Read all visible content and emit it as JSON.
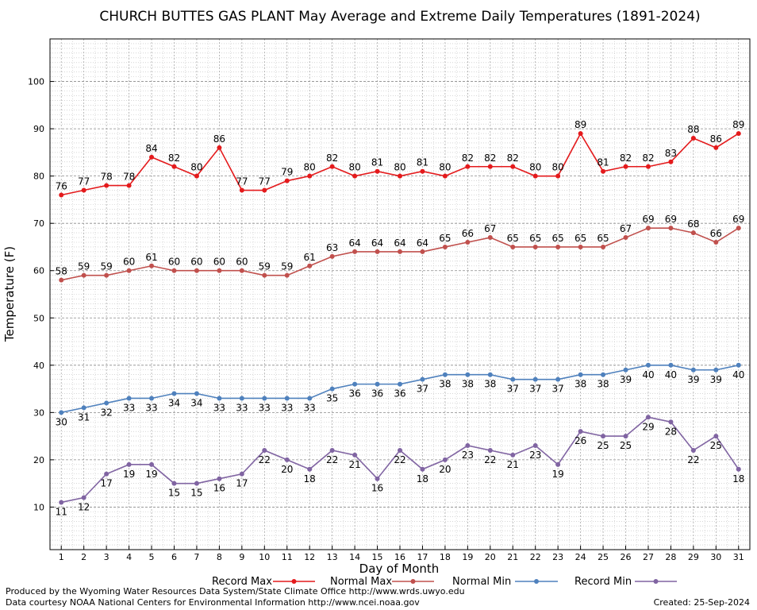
{
  "chart_data": {
    "type": "line",
    "title": "CHURCH BUTTES GAS PLANT May Average and Extreme Daily Temperatures (1891-2024)",
    "xlabel": "Day of Month",
    "ylabel": "Temperature (F)",
    "x": [
      1,
      2,
      3,
      4,
      5,
      6,
      7,
      8,
      9,
      10,
      11,
      12,
      13,
      14,
      15,
      16,
      17,
      18,
      19,
      20,
      21,
      22,
      23,
      24,
      25,
      26,
      27,
      28,
      29,
      30,
      31
    ],
    "xlim": [
      0.5,
      31.5
    ],
    "ylim": [
      1,
      109
    ],
    "yticks": [
      10,
      20,
      30,
      40,
      50,
      60,
      70,
      80,
      90,
      100
    ],
    "grid": true,
    "legend_position": "bottom",
    "series": [
      {
        "name": "Record Max",
        "color": "#e41a1c",
        "label_position": "above",
        "values": [
          76,
          77,
          78,
          78,
          84,
          82,
          80,
          86,
          77,
          77,
          79,
          80,
          82,
          80,
          81,
          80,
          81,
          80,
          82,
          82,
          82,
          80,
          80,
          89,
          81,
          82,
          82,
          83,
          88,
          86,
          89
        ]
      },
      {
        "name": "Normal Max",
        "color": "#c0504d",
        "label_position": "above",
        "values": [
          58,
          59,
          59,
          60,
          61,
          60,
          60,
          60,
          60,
          59,
          59,
          61,
          63,
          64,
          64,
          64,
          64,
          65,
          66,
          67,
          65,
          65,
          65,
          65,
          65,
          67,
          69,
          69,
          68,
          66,
          69
        ]
      },
      {
        "name": "Normal Min",
        "color": "#4f81bd",
        "label_position": "below",
        "values": [
          30,
          31,
          32,
          33,
          33,
          34,
          34,
          33,
          33,
          33,
          33,
          33,
          35,
          36,
          36,
          36,
          37,
          38,
          38,
          38,
          37,
          37,
          37,
          38,
          38,
          39,
          40,
          40,
          39,
          39,
          40
        ]
      },
      {
        "name": "Record Min",
        "color": "#8064a2",
        "label_position": "below",
        "values": [
          11,
          12,
          17,
          19,
          19,
          15,
          15,
          16,
          17,
          22,
          20,
          18,
          22,
          21,
          16,
          22,
          18,
          20,
          23,
          22,
          21,
          23,
          19,
          26,
          25,
          25,
          29,
          28,
          22,
          25,
          18
        ]
      }
    ]
  },
  "footer": {
    "left_line1": "Produced by the Wyoming Water Resources Data System/State Climate Office http://www.wrds.uwyo.edu",
    "left_line2": "Data courtesy NOAA National Centers for Environmental Information http://www.ncei.noaa.gov",
    "created": "Created:  25-Sep-2024"
  }
}
